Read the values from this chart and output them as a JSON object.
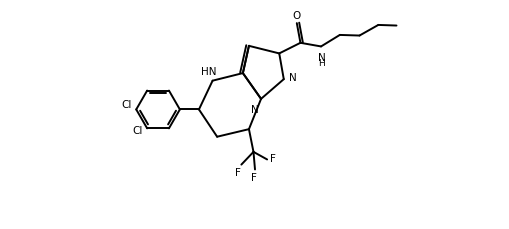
{
  "bg_color": "#ffffff",
  "figsize": [
    5.1,
    2.3
  ],
  "dpi": 100,
  "lw": 1.4,
  "fontsize": 7.5,
  "xlim": [
    0,
    10.5
  ],
  "ylim": [
    0,
    7.5
  ]
}
